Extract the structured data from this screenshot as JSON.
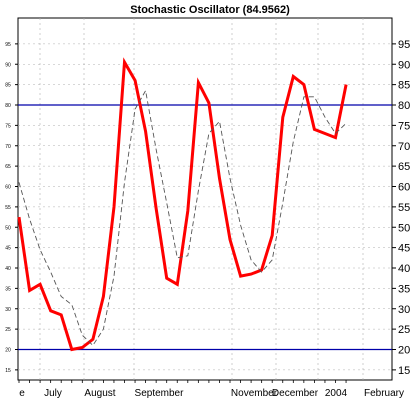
{
  "chart_data": {
    "type": "line",
    "title": "Stochastic Oscillator (84.9562)",
    "ylim": [
      13,
      100
    ],
    "y_ticks": [
      15,
      20,
      25,
      30,
      35,
      40,
      45,
      50,
      55,
      60,
      65,
      70,
      75,
      80,
      85,
      90,
      95
    ],
    "x_labels": [
      "e",
      "July",
      "August",
      "September",
      "November",
      "December",
      "2004",
      "February"
    ],
    "reference_lines": [
      20,
      80
    ],
    "grid": true,
    "colors": {
      "k_line": "#ff0000",
      "d_line": "#555555",
      "reference": "#0000aa"
    },
    "series": [
      {
        "role": "k",
        "values": [
          52.5,
          34.5,
          36,
          29.5,
          28.5,
          20,
          20.5,
          22.5,
          33,
          55,
          90.5,
          86,
          73.5,
          54.5,
          37.5,
          36,
          54,
          85.5,
          80.5,
          62,
          47,
          38,
          38.5,
          39.5,
          48,
          77,
          87,
          85,
          74,
          73,
          72,
          85
        ]
      },
      {
        "role": "d",
        "values": [
          61,
          52,
          44.5,
          39,
          33,
          31,
          23.5,
          21,
          25,
          38,
          61,
          79,
          83.5,
          69,
          56,
          42.5,
          43,
          59,
          73,
          76,
          62,
          50.5,
          42,
          39,
          42,
          56,
          71,
          82,
          82,
          77,
          73,
          75.5
        ]
      }
    ]
  }
}
